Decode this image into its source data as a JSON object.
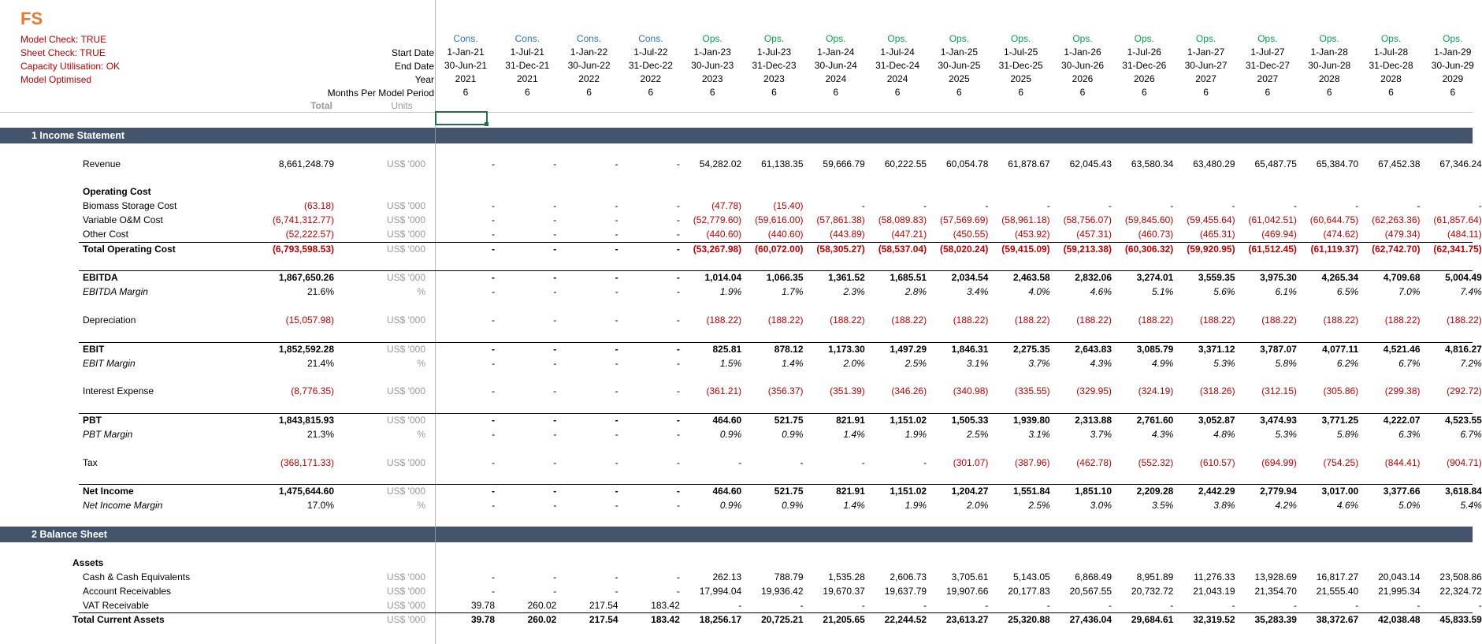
{
  "sheet_title": "FS",
  "checks": [
    "Model Check: TRUE",
    "Sheet Check: TRUE",
    "Capacity Utilisation: OK",
    "Model Optimised"
  ],
  "header_labels": {
    "start_date": "Start Date",
    "end_date": "End Date",
    "year": "Year",
    "months": "Months Per Model Period",
    "total": "Total",
    "units": "Units"
  },
  "periods": [
    {
      "phase": "Cons.",
      "start": "1-Jan-21",
      "end": "30-Jun-21",
      "year": "2021",
      "months": "6"
    },
    {
      "phase": "Cons.",
      "start": "1-Jul-21",
      "end": "31-Dec-21",
      "year": "2021",
      "months": "6"
    },
    {
      "phase": "Cons.",
      "start": "1-Jan-22",
      "end": "30-Jun-22",
      "year": "2022",
      "months": "6"
    },
    {
      "phase": "Cons.",
      "start": "1-Jul-22",
      "end": "31-Dec-22",
      "year": "2022",
      "months": "6"
    },
    {
      "phase": "Ops.",
      "start": "1-Jan-23",
      "end": "30-Jun-23",
      "year": "2023",
      "months": "6"
    },
    {
      "phase": "Ops.",
      "start": "1-Jul-23",
      "end": "31-Dec-23",
      "year": "2023",
      "months": "6"
    },
    {
      "phase": "Ops.",
      "start": "1-Jan-24",
      "end": "30-Jun-24",
      "year": "2024",
      "months": "6"
    },
    {
      "phase": "Ops.",
      "start": "1-Jul-24",
      "end": "31-Dec-24",
      "year": "2024",
      "months": "6"
    },
    {
      "phase": "Ops.",
      "start": "1-Jan-25",
      "end": "30-Jun-25",
      "year": "2025",
      "months": "6"
    },
    {
      "phase": "Ops.",
      "start": "1-Jul-25",
      "end": "31-Dec-25",
      "year": "2025",
      "months": "6"
    },
    {
      "phase": "Ops.",
      "start": "1-Jan-26",
      "end": "30-Jun-26",
      "year": "2026",
      "months": "6"
    },
    {
      "phase": "Ops.",
      "start": "1-Jul-26",
      "end": "31-Dec-26",
      "year": "2026",
      "months": "6"
    },
    {
      "phase": "Ops.",
      "start": "1-Jan-27",
      "end": "30-Jun-27",
      "year": "2027",
      "months": "6"
    },
    {
      "phase": "Ops.",
      "start": "1-Jul-27",
      "end": "31-Dec-27",
      "year": "2027",
      "months": "6"
    },
    {
      "phase": "Ops.",
      "start": "1-Jan-28",
      "end": "30-Jun-28",
      "year": "2028",
      "months": "6"
    },
    {
      "phase": "Ops.",
      "start": "1-Jul-28",
      "end": "31-Dec-28",
      "year": "2028",
      "months": "6"
    },
    {
      "phase": "Ops.",
      "start": "1-Jan-29",
      "end": "30-Jun-29",
      "year": "2029",
      "months": "6"
    }
  ],
  "sections": {
    "income_statement": "1  Income Statement",
    "balance_sheet": "2  Balance Sheet"
  },
  "rows": {
    "revenue": {
      "label": "Revenue",
      "total": "8,661,248.79",
      "unit": "US$ '000",
      "values": [
        "-",
        "-",
        "-",
        "-",
        "54,282.02",
        "61,138.35",
        "59,666.79",
        "60,222.55",
        "60,054.78",
        "61,878.67",
        "62,045.43",
        "63,580.34",
        "63,480.29",
        "65,487.75",
        "65,384.70",
        "67,452.38",
        "67,346.24"
      ]
    },
    "operating_cost_header": {
      "label": "Operating Cost"
    },
    "biomass": {
      "label": "Biomass Storage Cost",
      "total": "(63.18)",
      "unit": "US$ '000",
      "values": [
        "-",
        "-",
        "-",
        "-",
        "(47.78)",
        "(15.40)",
        "-",
        "-",
        "-",
        "-",
        "-",
        "-",
        "-",
        "-",
        "-",
        "-",
        "-"
      ]
    },
    "variable_om": {
      "label": "Variable O&M Cost",
      "total": "(6,741,312.77)",
      "unit": "US$ '000",
      "values": [
        "-",
        "-",
        "-",
        "-",
        "(52,779.60)",
        "(59,616.00)",
        "(57,861.38)",
        "(58,089.83)",
        "(57,569.69)",
        "(58,961.18)",
        "(58,756.07)",
        "(59,845.60)",
        "(59,455.64)",
        "(61,042.51)",
        "(60,644.75)",
        "(62,263.36)",
        "(61,857.64)"
      ]
    },
    "other_cost": {
      "label": "Other Cost",
      "total": "(52,222.57)",
      "unit": "US$ '000",
      "values": [
        "-",
        "-",
        "-",
        "-",
        "(440.60)",
        "(440.60)",
        "(443.89)",
        "(447.21)",
        "(450.55)",
        "(453.92)",
        "(457.31)",
        "(460.73)",
        "(465.31)",
        "(469.94)",
        "(474.62)",
        "(479.34)",
        "(484.11)"
      ]
    },
    "total_operating_cost": {
      "label": "Total Operating Cost",
      "total": "(6,793,598.53)",
      "unit": "US$ '000",
      "values": [
        "-",
        "-",
        "-",
        "-",
        "(53,267.98)",
        "(60,072.00)",
        "(58,305.27)",
        "(58,537.04)",
        "(58,020.24)",
        "(59,415.09)",
        "(59,213.38)",
        "(60,306.32)",
        "(59,920.95)",
        "(61,512.45)",
        "(61,119.37)",
        "(62,742.70)",
        "(62,341.75)"
      ]
    },
    "ebitda": {
      "label": "EBITDA",
      "total": "1,867,650.26",
      "unit": "US$ '000",
      "values": [
        "-",
        "-",
        "-",
        "-",
        "1,014.04",
        "1,066.35",
        "1,361.52",
        "1,685.51",
        "2,034.54",
        "2,463.58",
        "2,832.06",
        "3,274.01",
        "3,559.35",
        "3,975.30",
        "4,265.34",
        "4,709.68",
        "5,004.49"
      ]
    },
    "ebitda_margin": {
      "label": "EBITDA Margin",
      "total": "21.6%",
      "unit": "%",
      "values": [
        "-",
        "-",
        "-",
        "-",
        "1.9%",
        "1.7%",
        "2.3%",
        "2.8%",
        "3.4%",
        "4.0%",
        "4.6%",
        "5.1%",
        "5.6%",
        "6.1%",
        "6.5%",
        "7.0%",
        "7.4%"
      ]
    },
    "depreciation": {
      "label": "Depreciation",
      "total": "(15,057.98)",
      "unit": "US$ '000",
      "values": [
        "-",
        "-",
        "-",
        "-",
        "(188.22)",
        "(188.22)",
        "(188.22)",
        "(188.22)",
        "(188.22)",
        "(188.22)",
        "(188.22)",
        "(188.22)",
        "(188.22)",
        "(188.22)",
        "(188.22)",
        "(188.22)",
        "(188.22)"
      ]
    },
    "ebit": {
      "label": "EBIT",
      "total": "1,852,592.28",
      "unit": "US$ '000",
      "values": [
        "-",
        "-",
        "-",
        "-",
        "825.81",
        "878.12",
        "1,173.30",
        "1,497.29",
        "1,846.31",
        "2,275.35",
        "2,643.83",
        "3,085.79",
        "3,371.12",
        "3,787.07",
        "4,077.11",
        "4,521.46",
        "4,816.27"
      ]
    },
    "ebit_margin": {
      "label": "EBIT Margin",
      "total": "21.4%",
      "unit": "%",
      "values": [
        "-",
        "-",
        "-",
        "-",
        "1.5%",
        "1.4%",
        "2.0%",
        "2.5%",
        "3.1%",
        "3.7%",
        "4.3%",
        "4.9%",
        "5.3%",
        "5.8%",
        "6.2%",
        "6.7%",
        "7.2%"
      ]
    },
    "interest": {
      "label": "Interest Expense",
      "total": "(8,776.35)",
      "unit": "US$ '000",
      "values": [
        "-",
        "-",
        "-",
        "-",
        "(361.21)",
        "(356.37)",
        "(351.39)",
        "(346.26)",
        "(340.98)",
        "(335.55)",
        "(329.95)",
        "(324.19)",
        "(318.26)",
        "(312.15)",
        "(305.86)",
        "(299.38)",
        "(292.72)"
      ]
    },
    "pbt": {
      "label": "PBT",
      "total": "1,843,815.93",
      "unit": "US$ '000",
      "values": [
        "-",
        "-",
        "-",
        "-",
        "464.60",
        "521.75",
        "821.91",
        "1,151.02",
        "1,505.33",
        "1,939.80",
        "2,313.88",
        "2,761.60",
        "3,052.87",
        "3,474.93",
        "3,771.25",
        "4,222.07",
        "4,523.55"
      ]
    },
    "pbt_margin": {
      "label": "PBT Margin",
      "total": "21.3%",
      "unit": "%",
      "values": [
        "-",
        "-",
        "-",
        "-",
        "0.9%",
        "0.9%",
        "1.4%",
        "1.9%",
        "2.5%",
        "3.1%",
        "3.7%",
        "4.3%",
        "4.8%",
        "5.3%",
        "5.8%",
        "6.3%",
        "6.7%"
      ]
    },
    "tax": {
      "label": "Tax",
      "total": "(368,171.33)",
      "unit": "US$ '000",
      "values": [
        "-",
        "-",
        "-",
        "-",
        "-",
        "-",
        "-",
        "-",
        "(301.07)",
        "(387.96)",
        "(462.78)",
        "(552.32)",
        "(610.57)",
        "(694.99)",
        "(754.25)",
        "(844.41)",
        "(904.71)"
      ]
    },
    "net_income": {
      "label": "Net Income",
      "total": "1,475,644.60",
      "unit": "US$ '000",
      "values": [
        "-",
        "-",
        "-",
        "-",
        "464.60",
        "521.75",
        "821.91",
        "1,151.02",
        "1,204.27",
        "1,551.84",
        "1,851.10",
        "2,209.28",
        "2,442.29",
        "2,779.94",
        "3,017.00",
        "3,377.66",
        "3,618.84"
      ]
    },
    "net_income_margin": {
      "label": "Net Income Margin",
      "total": "17.0%",
      "unit": "%",
      "values": [
        "-",
        "-",
        "-",
        "-",
        "0.9%",
        "0.9%",
        "1.4%",
        "1.9%",
        "2.0%",
        "2.5%",
        "3.0%",
        "3.5%",
        "3.8%",
        "4.2%",
        "4.6%",
        "5.0%",
        "5.4%"
      ]
    },
    "assets_header": {
      "label": "Assets"
    },
    "cash": {
      "label": "Cash & Cash Equivalents",
      "total": "",
      "unit": "US$ '000",
      "values": [
        "-",
        "-",
        "-",
        "-",
        "262.13",
        "788.79",
        "1,535.28",
        "2,606.73",
        "3,705.61",
        "5,143.05",
        "6,868.49",
        "8,951.89",
        "11,276.33",
        "13,928.69",
        "16,817.27",
        "20,043.14",
        "23,508.86"
      ]
    },
    "receivables": {
      "label": "Account Receivables",
      "total": "",
      "unit": "US$ '000",
      "values": [
        "-",
        "-",
        "-",
        "-",
        "17,994.04",
        "19,936.42",
        "19,670.37",
        "19,637.79",
        "19,907.66",
        "20,177.83",
        "20,567.55",
        "20,732.72",
        "21,043.19",
        "21,354.70",
        "21,555.40",
        "21,995.34",
        "22,324.72"
      ]
    },
    "vat": {
      "label": "VAT Receivable",
      "total": "",
      "unit": "US$ '000",
      "values": [
        "39.78",
        "260.02",
        "217.54",
        "183.42",
        "-",
        "-",
        "-",
        "-",
        "-",
        "-",
        "-",
        "-",
        "-",
        "-",
        "-",
        "-",
        "-"
      ]
    },
    "total_current_assets": {
      "label": "Total Current Assets",
      "total": "",
      "unit": "US$ '000",
      "values": [
        "39.78",
        "260.02",
        "217.54",
        "183.42",
        "18,256.17",
        "20,725.21",
        "21,205.65",
        "22,244.52",
        "23,613.27",
        "25,320.88",
        "27,436.04",
        "29,684.61",
        "32,319.52",
        "35,283.39",
        "38,372.67",
        "42,038.48",
        "45,833.59"
      ]
    }
  },
  "colors": {
    "section_bg": "#44546A",
    "negative": "#C00000",
    "cons": "#2E75B6",
    "ops": "#00A550",
    "title": "#E8782B"
  }
}
